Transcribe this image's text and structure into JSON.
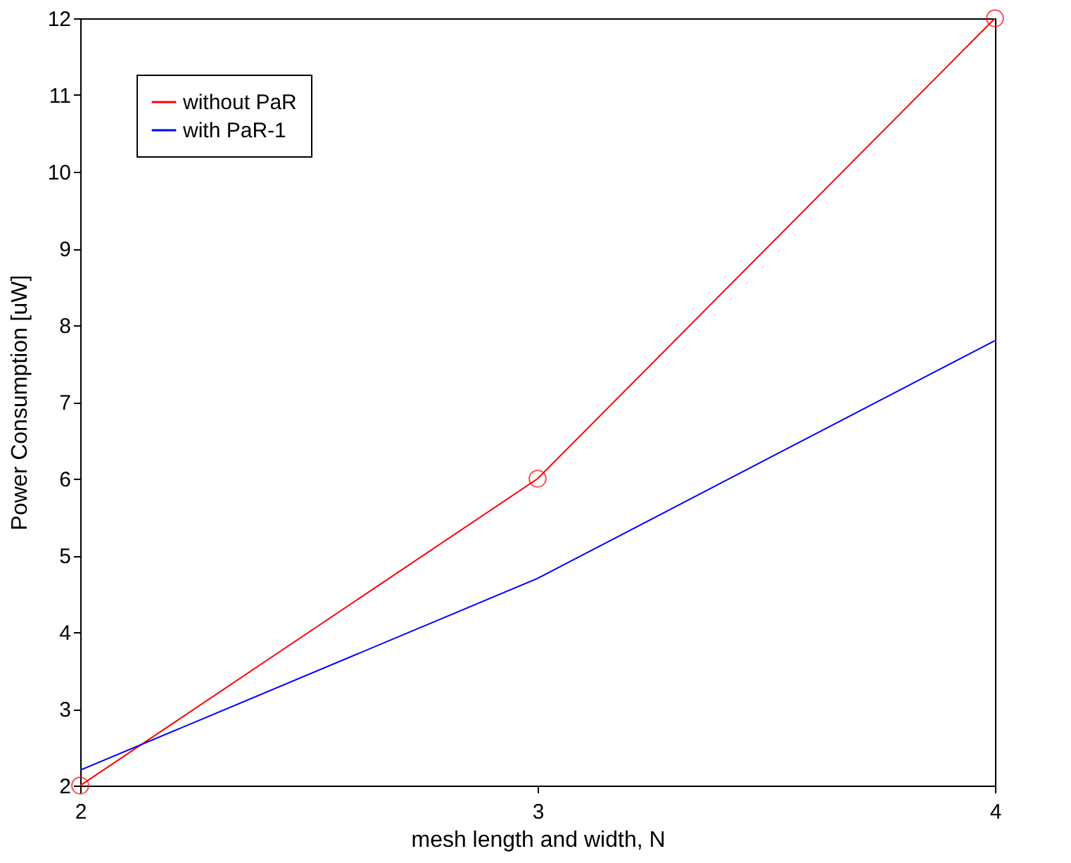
{
  "chart_data": {
    "type": "line",
    "xlabel": "mesh length and width, N",
    "ylabel": "Power Consumption [uW]",
    "x": [
      2,
      3,
      4
    ],
    "xlim": [
      2,
      4
    ],
    "xticks": [
      2,
      3,
      4
    ],
    "ylim": [
      2,
      12
    ],
    "yticks": [
      2,
      3,
      4,
      5,
      6,
      7,
      8,
      9,
      10,
      11,
      12
    ],
    "grid": false,
    "legend": "top left",
    "line_style": "solid",
    "series": [
      {
        "name": "without PaR",
        "color": "#ff0000",
        "marker": "circle",
        "values": [
          2,
          6,
          12
        ]
      },
      {
        "name": "with PaR-1",
        "color": "#0000ff",
        "marker": "none",
        "values": [
          2.2,
          4.7,
          7.8
        ]
      }
    ]
  }
}
